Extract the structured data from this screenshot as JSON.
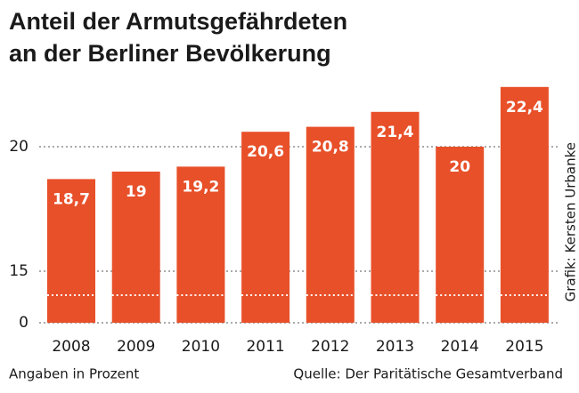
{
  "chart_data": {
    "type": "bar",
    "title": [
      "Anteil der Armutsgefährdeten",
      "an der Berliner Bevölkerung"
    ],
    "categories": [
      "2008",
      "2009",
      "2010",
      "2011",
      "2012",
      "2013",
      "2014",
      "2015"
    ],
    "values": [
      18.7,
      19,
      19.2,
      20.6,
      20.8,
      21.4,
      20,
      22.4
    ],
    "value_labels": [
      "18,7",
      "19",
      "19,2",
      "20,6",
      "20,8",
      "21,4",
      "20",
      "22,4"
    ],
    "color": "#e8502a",
    "ylim": [
      0,
      23
    ],
    "yticks": [
      0,
      15,
      20
    ],
    "grid": true,
    "broken_axis": true,
    "note": "Angaben in Prozent",
    "source": "Quelle: Der Paritätische Gesamtverband",
    "credit": "Grafik: Kersten Urbanke"
  }
}
